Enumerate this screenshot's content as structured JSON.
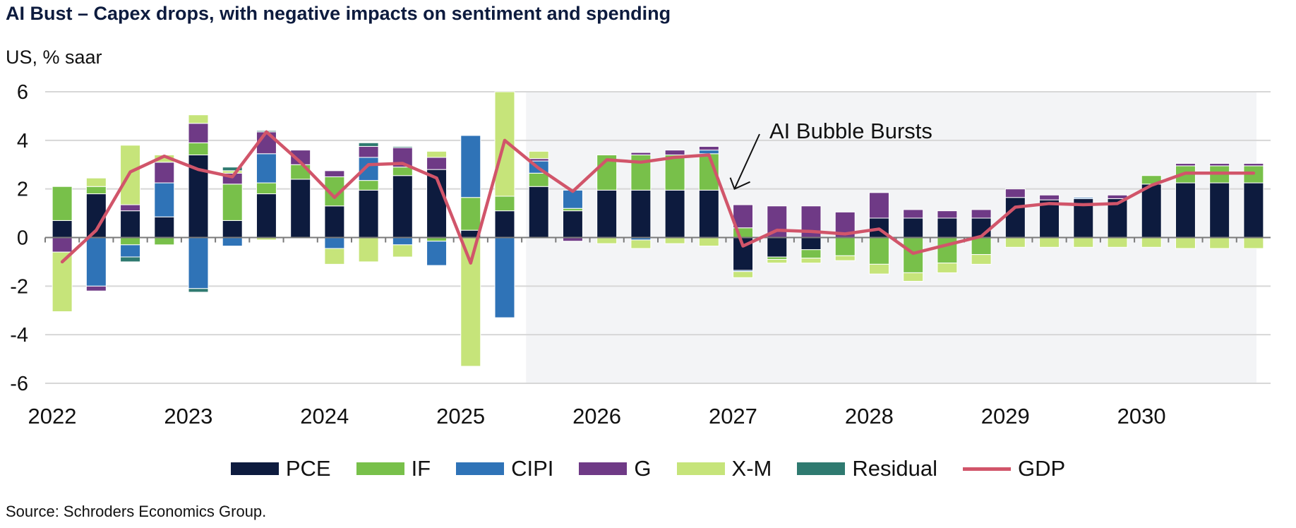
{
  "header": {
    "title": "AI Bust – Capex drops, with negative impacts on sentiment and spending",
    "unit": "US, % saar",
    "source": "Source: Schroders Economics Group."
  },
  "colors": {
    "PCE": "#0d1b3e",
    "IF": "#78c04a",
    "CIPI": "#2f73b7",
    "G": "#6f3a86",
    "X-M": "#c6e47a",
    "Residual": "#2f7a70",
    "GDP": "#d1556a",
    "forecast_shade": "#f3f4f6",
    "grid": "#d7d7d7"
  },
  "chart_data": {
    "type": "bar",
    "stacked": true,
    "title": "AI Bust – Capex drops, with negative impacts on sentiment and spending",
    "ylabel": "US, % saar",
    "ylim": [
      -6,
      6
    ],
    "yticks": [
      6,
      4,
      2,
      0,
      -2,
      -4,
      -6
    ],
    "x_tick_labels": [
      {
        "label": "2022",
        "index": 0
      },
      {
        "label": "2023",
        "index": 4
      },
      {
        "label": "2024",
        "index": 8
      },
      {
        "label": "2025",
        "index": 12
      },
      {
        "label": "2026",
        "index": 16
      },
      {
        "label": "2027",
        "index": 20
      },
      {
        "label": "2028",
        "index": 24
      },
      {
        "label": "2029",
        "index": 28
      },
      {
        "label": "2030",
        "index": 32
      }
    ],
    "categories": [
      "2022Q1",
      "2022Q2",
      "2022Q3",
      "2022Q4",
      "2023Q1",
      "2023Q2",
      "2023Q3",
      "2023Q4",
      "2024Q1",
      "2024Q2",
      "2024Q3",
      "2024Q4",
      "2025Q1",
      "2025Q2",
      "2025Q3",
      "2025Q4",
      "2026Q1",
      "2026Q2",
      "2026Q3",
      "2026Q4",
      "2027Q1",
      "2027Q2",
      "2027Q3",
      "2027Q4",
      "2028Q1",
      "2028Q2",
      "2028Q3",
      "2028Q4",
      "2029Q1",
      "2029Q2",
      "2029Q3",
      "2029Q4",
      "2030Q1",
      "2030Q2",
      "2030Q3",
      "2030Q4"
    ],
    "forecast_start_index": 14,
    "series": [
      {
        "name": "PCE",
        "values": [
          0.7,
          1.8,
          1.1,
          0.85,
          3.4,
          0.7,
          1.8,
          2.4,
          1.3,
          1.95,
          2.55,
          2.8,
          0.3,
          1.1,
          2.1,
          1.1,
          1.95,
          1.95,
          1.95,
          1.95,
          -1.35,
          -0.8,
          -0.5,
          0,
          0.8,
          0.8,
          0.8,
          0.8,
          1.65,
          1.55,
          1.6,
          1.6,
          2.2,
          2.25,
          2.25,
          2.25
        ]
      },
      {
        "name": "IF",
        "values": [
          1.4,
          0.3,
          -0.3,
          -0.3,
          0.5,
          1.5,
          0.45,
          0.6,
          1.2,
          0.4,
          0.35,
          -0.15,
          1.35,
          0.6,
          0.55,
          0.1,
          1.45,
          1.45,
          1.45,
          1.5,
          0.4,
          -0.1,
          -0.35,
          -0.75,
          -1.1,
          -1.45,
          -1.05,
          -0.7,
          0,
          0,
          0,
          0,
          0.35,
          0.7,
          0.7,
          0.7
        ]
      },
      {
        "name": "CIPI",
        "values": [
          0,
          -2.0,
          -0.5,
          1.4,
          -2.1,
          -0.35,
          1.2,
          0,
          -0.45,
          0.95,
          -0.3,
          -1.0,
          2.55,
          -3.3,
          0.5,
          0.75,
          0,
          -0.1,
          0,
          0.15,
          -0.05,
          0,
          0,
          0,
          0,
          0,
          0,
          0,
          0,
          0,
          0.05,
          0,
          0,
          0,
          0,
          0
        ]
      },
      {
        "name": "G",
        "values": [
          -0.6,
          -0.2,
          0.25,
          0.85,
          0.8,
          0.45,
          0.9,
          0.6,
          0.25,
          0.45,
          0.8,
          0.5,
          0,
          0,
          0.1,
          -0.15,
          0,
          0.1,
          0.2,
          0.15,
          0.95,
          1.3,
          1.3,
          1.05,
          1.05,
          0.35,
          0.3,
          0.35,
          0.35,
          0.2,
          0,
          0.15,
          0,
          0.1,
          0.1,
          0.1
        ]
      },
      {
        "name": "X-M",
        "values": [
          -2.45,
          0.35,
          2.45,
          0.3,
          0.35,
          0.1,
          -0.1,
          0,
          -0.65,
          -1.0,
          -0.5,
          0.25,
          -5.3,
          4.3,
          0.3,
          0,
          -0.25,
          -0.35,
          -0.25,
          -0.35,
          -0.25,
          -0.15,
          -0.2,
          -0.2,
          -0.4,
          -0.35,
          -0.4,
          -0.4,
          -0.4,
          -0.4,
          -0.4,
          -0.4,
          -0.4,
          -0.45,
          -0.45,
          -0.45
        ]
      },
      {
        "name": "Residual",
        "values": [
          0,
          0,
          -0.2,
          0,
          -0.15,
          0.15,
          0.05,
          0,
          0,
          0.15,
          0.05,
          0,
          0,
          0,
          0,
          0,
          0,
          0,
          0,
          0,
          0,
          0,
          0,
          0,
          0,
          0,
          0,
          0,
          0,
          0,
          0,
          0,
          0,
          0,
          0,
          0
        ]
      }
    ],
    "line_series": {
      "name": "GDP",
      "values": [
        -1.0,
        0.3,
        2.7,
        3.35,
        2.8,
        2.5,
        4.35,
        3.1,
        1.65,
        3.0,
        3.05,
        2.45,
        -1.05,
        4.0,
        2.85,
        1.9,
        3.2,
        3.1,
        3.3,
        3.4,
        -0.35,
        0.3,
        0.25,
        0.15,
        0.35,
        -0.65,
        -0.3,
        0.05,
        1.25,
        1.4,
        1.35,
        1.4,
        2.15,
        2.65,
        2.65,
        2.65
      ]
    },
    "annotations": [
      {
        "text": "AI Bubble Bursts",
        "points_to_index": 20,
        "points_to_value": 2.0
      }
    ],
    "legend": [
      "PCE",
      "IF",
      "CIPI",
      "G",
      "X-M",
      "Residual",
      "GDP"
    ],
    "legend_position": "bottom"
  }
}
